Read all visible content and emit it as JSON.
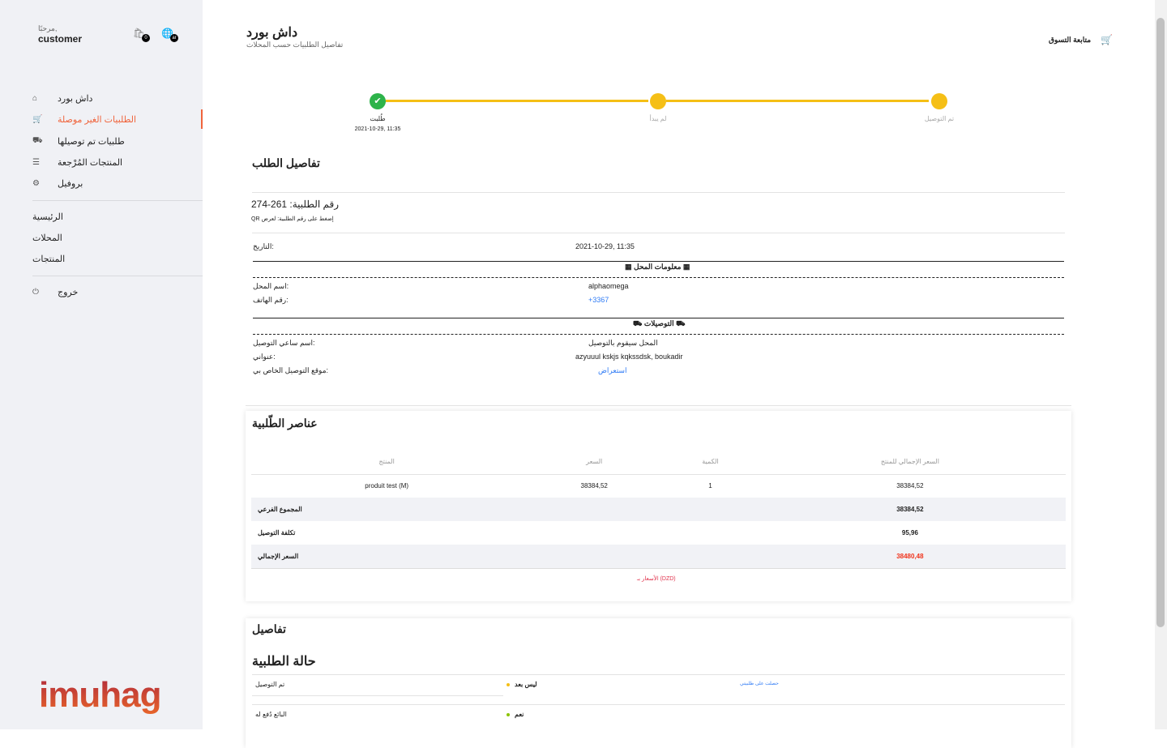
{
  "sidebar": {
    "greeting": "مرحبًا,",
    "username": "customer",
    "cart_badge": "0",
    "lang_badge": "ar",
    "nav": [
      {
        "label": "داش بورد",
        "icon": "home-icon"
      },
      {
        "label": "الطلبيات الغير موصلة",
        "icon": "cart-icon",
        "active": true
      },
      {
        "label": "طلبيات تم توصيلها",
        "icon": "truck-icon"
      },
      {
        "label": "المنتجات المُرْجعة",
        "icon": "database-icon"
      },
      {
        "label": "بروفيل",
        "icon": "gear-icon"
      }
    ],
    "links": [
      "الرئيسية",
      "المحلات",
      "المنتجات"
    ],
    "logout": "خروج",
    "logo": "imuhag"
  },
  "header": {
    "title": "داش بورد",
    "subtitle": "تفاصيل الطلبيات حسب المحلات",
    "continue_shopping": "متابعة التسوق"
  },
  "progress": {
    "steps": [
      {
        "label": "طُلبت",
        "date": "2021-10-29, 11:35",
        "done": true
      },
      {
        "label": "لم يبدأ",
        "done": false
      },
      {
        "label": "تم التوصيل",
        "done": false
      }
    ],
    "colors": {
      "done": "#2db34a",
      "pending": "#f5bf16"
    }
  },
  "order": {
    "heading": "تفاصيل الطلب",
    "number_label": "رقم الطلبية: 261-274",
    "qr_hint": "QR إضغط على رقم الطلبية: لعرض",
    "date_label": "التاريخ:",
    "date": "2021-10-29, 11:35",
    "shop_heading": "معلومات المحل",
    "shop_name_label": "اسم المحل:",
    "shop_name": "alphaomega",
    "phone_label": "رقم الهاتف:",
    "phone": "+3367",
    "delivery_heading": "التوصيلات",
    "courier_label": "اسم ساعي التوصيل:",
    "courier": "المحل سيقوم بالتوصيل",
    "address_label": "عنواني:",
    "address": "azyuuul kskjs kqkssdsk, boukadir",
    "location_label": "موقع التوصيل الخاص بي:",
    "location_link": "استعراض"
  },
  "items": {
    "heading": "عناصر الطّلبية",
    "columns": [
      "المنتج",
      "السعر",
      "الكمية",
      "السعر الإجمالي للمنتج"
    ],
    "rows": [
      {
        "product": "produit test (M)",
        "price": "38384,52",
        "qty": "1",
        "total": "38384,52"
      }
    ],
    "subtotal_label": "المجموع الفرعي",
    "subtotal": "38384,52",
    "shipping_label": "تكلفة التوصيل",
    "shipping": "95,96",
    "total_label": "السعر الإجمالي",
    "total": "38480,48",
    "currency_note": "الأسعار بـ (DZD)"
  },
  "details": {
    "heading": "تفاصيل",
    "status_heading": "حالة الطلبية",
    "rows": [
      {
        "label": "تم التوصيل",
        "value": "ليس بعد",
        "dot": "#f5bf16",
        "action": "حصلت على طلبيتي"
      },
      {
        "label": "البائع دُفع له",
        "value": "نعم",
        "dot": "#8bc400"
      }
    ]
  }
}
